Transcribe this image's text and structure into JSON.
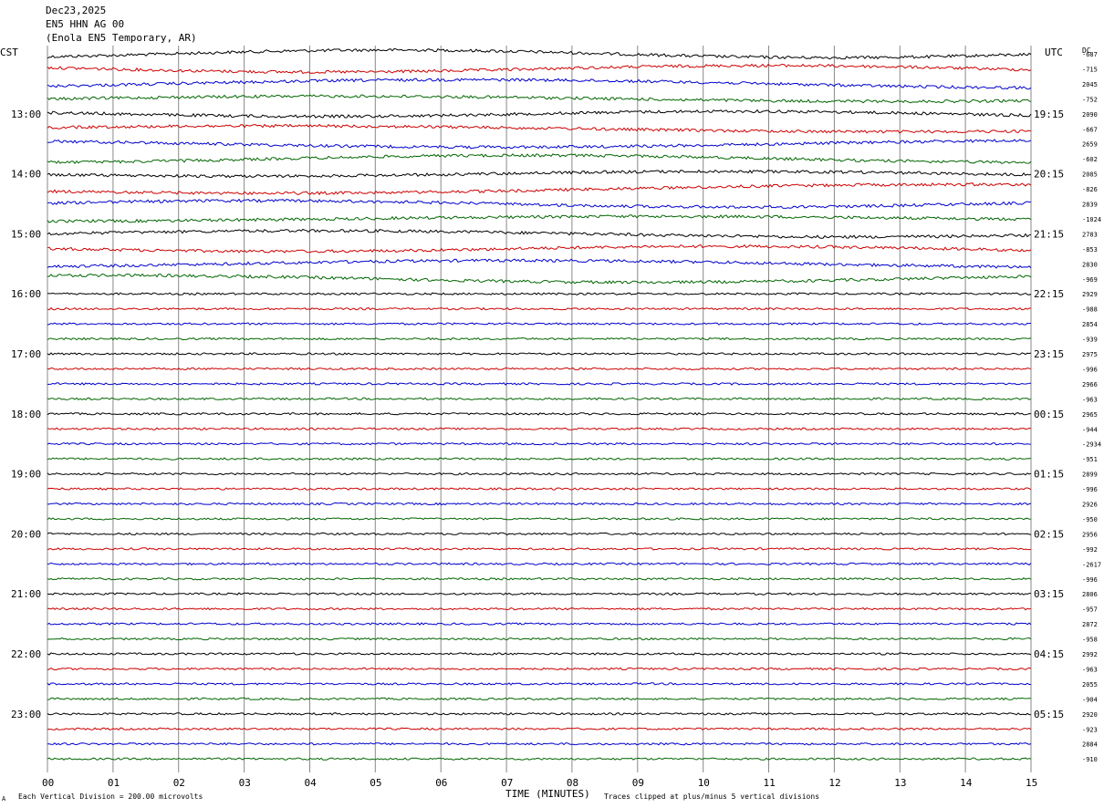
{
  "header": {
    "date": "Dec23,2025",
    "channel": "EN5 HHN AG 00",
    "station": "(Enola EN5 Temporary, AR)"
  },
  "labels": {
    "left_tz": "CST",
    "right_tz": "UTC",
    "dc": "DC",
    "xlabel": "TIME (MINUTES)",
    "scale_note": "Each Vertical Division =  200.00 microvolts",
    "clip_note": "Traces clipped at plus/minus 5 vertical divisions",
    "corner_mark": "A"
  },
  "colors": {
    "trace_cycle": [
      "#000000",
      "#cc0000",
      "#0000cc",
      "#006600"
    ],
    "grid": "#888888",
    "text": "#000000"
  },
  "chart_data": {
    "type": "line",
    "subtype": "helicorder",
    "x_ticks": [
      "00",
      "01",
      "02",
      "03",
      "04",
      "05",
      "06",
      "07",
      "08",
      "09",
      "10",
      "11",
      "12",
      "13",
      "14",
      "15"
    ],
    "xlim": [
      0,
      15
    ],
    "left_hour_labels": [
      "13:00",
      "14:00",
      "15:00",
      "16:00",
      "17:00",
      "18:00",
      "19:00",
      "20:00",
      "21:00",
      "22:00",
      "23:00"
    ],
    "right_hour_labels": [
      "19:15",
      "20:15",
      "21:15",
      "22:15",
      "23:15",
      "00:15",
      "01:15",
      "02:15",
      "03:15",
      "04:15",
      "05:15"
    ],
    "rows_per_hour": 4,
    "num_rows": 48,
    "first_hour_row": 4,
    "dc_offsets": [
      "-687",
      "-715",
      "2045",
      "-752",
      "2090",
      "-667",
      "2659",
      "-602",
      "2085",
      "-826",
      "2839",
      "-1024",
      "2783",
      "-853",
      "2830",
      "-969",
      "2929",
      "-988",
      "2854",
      "-939",
      "2975",
      "-996",
      "2966",
      "-963",
      "2965",
      "-944",
      "-2934",
      "-951",
      "2899",
      "-996",
      "2926",
      "-950",
      "2956",
      "-992",
      "-2617",
      "-996",
      "2806",
      "-957",
      "2872",
      "-958",
      "2992",
      "-963",
      "2055",
      "-904",
      "2920",
      "-923",
      "2884",
      "-910"
    ]
  }
}
